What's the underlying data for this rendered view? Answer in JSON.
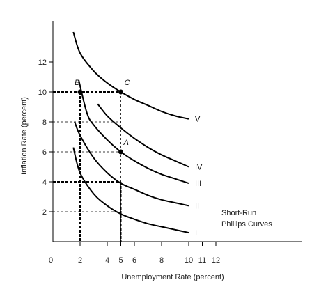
{
  "chart_data": {
    "type": "line",
    "title": "",
    "xlabel": "Unemployment Rate (percent)",
    "ylabel": "Inflation Rate (percent)",
    "xlim": [
      0,
      16
    ],
    "ylim": [
      0,
      15
    ],
    "x_ticks": [
      {
        "value": 0,
        "label": "0"
      },
      {
        "value": 2,
        "label": "2"
      },
      {
        "value": 4,
        "label": "4"
      },
      {
        "value": 5,
        "label": "5"
      },
      {
        "value": 6,
        "label": "6"
      },
      {
        "value": 8,
        "label": "8"
      },
      {
        "value": 10,
        "label": "10"
      },
      {
        "value": 11,
        "label": "11"
      },
      {
        "value": 12,
        "label": "12"
      }
    ],
    "y_ticks": [
      {
        "value": 2,
        "label": "2"
      },
      {
        "value": 4,
        "label": "4"
      },
      {
        "value": 6,
        "label": "6"
      },
      {
        "value": 8,
        "label": "8"
      },
      {
        "value": 10,
        "label": "10"
      },
      {
        "value": 12,
        "label": "12"
      }
    ],
    "grid": false,
    "series": [
      {
        "name": "I",
        "x": [
          1.5,
          2.0,
          3.0,
          4.0,
          5.0,
          6.0,
          7.0,
          8.0,
          9.0,
          10.0
        ],
        "y": [
          6.3,
          4.6,
          3.2,
          2.4,
          1.85,
          1.5,
          1.2,
          1.0,
          0.8,
          0.6
        ]
      },
      {
        "name": "II",
        "x": [
          1.6,
          2.0,
          3.0,
          4.0,
          5.0,
          6.0,
          7.0,
          8.0,
          9.0,
          10.0
        ],
        "y": [
          8.0,
          7.1,
          5.6,
          4.6,
          3.9,
          3.5,
          3.1,
          2.8,
          2.6,
          2.4
        ]
      },
      {
        "name": "III",
        "x": [
          1.9,
          2.5,
          3.0,
          4.0,
          5.0,
          6.0,
          7.0,
          8.0,
          9.0,
          10.0
        ],
        "y": [
          10.8,
          8.6,
          7.8,
          6.8,
          6.0,
          5.4,
          4.9,
          4.5,
          4.2,
          3.9
        ]
      },
      {
        "name": "IV",
        "x": [
          3.3,
          4.0,
          5.0,
          6.0,
          7.0,
          8.0,
          9.0,
          10.0
        ],
        "y": [
          9.2,
          8.4,
          7.6,
          6.9,
          6.3,
          5.8,
          5.4,
          5.0
        ]
      },
      {
        "name": "V",
        "x": [
          1.5,
          2.0,
          3.0,
          4.0,
          5.0,
          6.0,
          7.0,
          8.0,
          9.0,
          10.0
        ],
        "y": [
          14.0,
          12.6,
          11.4,
          10.6,
          10.0,
          9.5,
          9.1,
          8.7,
          8.4,
          8.2
        ]
      }
    ],
    "points": [
      {
        "label": "B",
        "x": 2,
        "y": 10
      },
      {
        "label": "C",
        "x": 5,
        "y": 10
      },
      {
        "label": "A",
        "x": 5,
        "y": 6
      }
    ],
    "guides": {
      "horizontal": [
        {
          "y": 10,
          "x_to": 5,
          "style": "bold"
        },
        {
          "y": 8,
          "x_to": 5,
          "style": "dashed"
        },
        {
          "y": 6,
          "x_to": 5,
          "style": "dashed"
        },
        {
          "y": 4,
          "x_to": 5,
          "style": "bold"
        },
        {
          "y": 2,
          "x_to": 5,
          "style": "dashed"
        }
      ],
      "vertical": [
        {
          "x": 2,
          "y_to": 10,
          "style": "bold"
        },
        {
          "x": 5,
          "y_to": 10,
          "style": "dashed"
        },
        {
          "x": 5,
          "y_to": 4,
          "style": "bold"
        }
      ]
    },
    "annotation": [
      "Short-Run",
      "Phillips Curves"
    ]
  }
}
